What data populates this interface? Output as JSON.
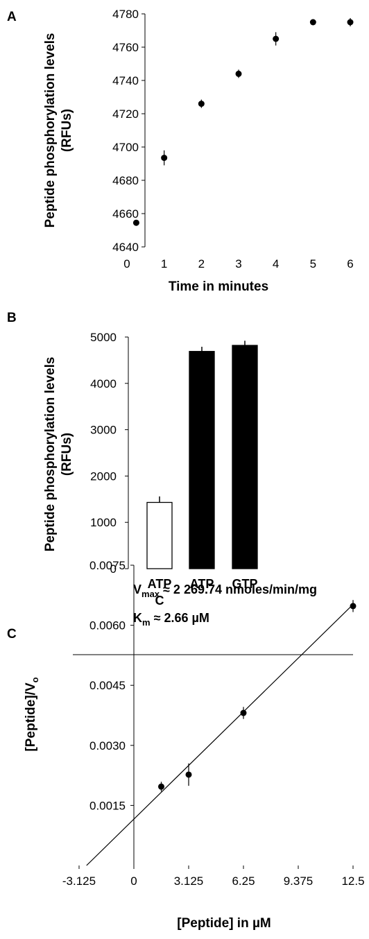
{
  "chart_data": [
    {
      "panel_label": "A",
      "type": "scatter",
      "xlabel": "Time in minutes",
      "ylabel_lines": [
        "Peptide phosphorylation levels",
        "(RFUs)"
      ],
      "xlim": [
        0,
        6
      ],
      "ylim": [
        4640,
        4780
      ],
      "xticks": [
        0,
        1,
        2,
        3,
        4,
        5,
        6
      ],
      "yticks": [
        4640,
        4660,
        4680,
        4700,
        4720,
        4740,
        4760,
        4780
      ],
      "grid": false,
      "points": [
        {
          "x": 0.25,
          "y": 4654.5,
          "err": 0
        },
        {
          "x": 1,
          "y": 4693.5,
          "err": 4.5
        },
        {
          "x": 2,
          "y": 4726,
          "err": 2.5
        },
        {
          "x": 3,
          "y": 4744,
          "err": 2.5
        },
        {
          "x": 4,
          "y": 4765,
          "err": 4
        },
        {
          "x": 5,
          "y": 4775,
          "err": 0
        },
        {
          "x": 6,
          "y": 4775,
          "err": 2.5
        }
      ]
    },
    {
      "panel_label": "B",
      "type": "bar",
      "ylabel_lines": [
        "Peptide phosphorylation levels",
        "(RFUs)"
      ],
      "ylim": [
        0,
        5000
      ],
      "yticks": [
        0,
        1000,
        2000,
        3000,
        4000,
        5000
      ],
      "grid": false,
      "categories": [
        {
          "lines": [
            "ATP",
            "C"
          ],
          "value": 1430,
          "err": 130,
          "fill": "#ffffff"
        },
        {
          "lines": [
            "ATP"
          ],
          "value": 4690,
          "err": 100,
          "fill": "#000000"
        },
        {
          "lines": [
            "GTP"
          ],
          "value": 4820,
          "err": 100,
          "fill": "#000000"
        }
      ]
    },
    {
      "panel_label": "C",
      "type": "scatter",
      "xlabel": "[Peptide] in µM",
      "ylabel": "[Peptide]/V",
      "ylabel_subscript": "o",
      "xlim": [
        -3.125,
        12.5
      ],
      "ylim": [
        0,
        0.0075
      ],
      "xticks": [
        "-3.125",
        "0",
        "3.125",
        "6.25",
        "9.375",
        "12.5"
      ],
      "yticks": [
        "0.0015",
        "0.0030",
        "0.0045",
        "0.0060",
        "0.0075"
      ],
      "grid": false,
      "points": [
        {
          "x": 1.5625,
          "y": 0.00197,
          "err": 0.00012
        },
        {
          "x": 3.125,
          "y": 0.00227,
          "err": 0.00028
        },
        {
          "x": 6.25,
          "y": 0.00381,
          "err": 0.00015
        },
        {
          "x": 12.5,
          "y": 0.00648,
          "err": 0.00015
        }
      ],
      "fit_line": {
        "x": [
          -2.7,
          12.5
        ],
        "y": [
          0,
          0.00652
        ]
      },
      "annotations": {
        "vmax": {
          "symbol": "V",
          "subscript": "max",
          "text": "≈  2 269.74 nmoles/min/mg"
        },
        "km": {
          "symbol": "K",
          "subscript": "m",
          "text": "≈  2.66 µM"
        }
      }
    }
  ]
}
